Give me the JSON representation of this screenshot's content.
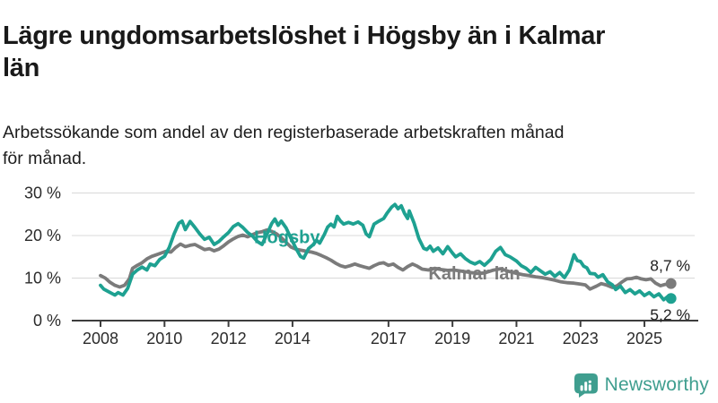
{
  "header": {
    "title_lines": [
      "Lägre ungdomsarbetslöshet i Högsby än i Kalmar",
      "län"
    ],
    "subtitle_lines": [
      "Arbetssökande som andel av den registerbaserade arbetskraften månad",
      "för månad."
    ]
  },
  "chart_data": {
    "type": "line",
    "title": "Lägre ungdomsarbetslöshet i Högsby än i Kalmar län",
    "subtitle": "Arbetssökande som andel av den registerbaserade arbetskraften månad för månad.",
    "unit": "%",
    "grid": true,
    "legend_position": "inline-labels",
    "x_axis": {
      "range": [
        2007.75,
        2026.3
      ],
      "ticks": [
        2008,
        2010,
        2012,
        2014,
        2017,
        2019,
        2021,
        2023,
        2025
      ]
    },
    "y_axis": {
      "range": [
        0,
        31
      ],
      "ticks": [
        0,
        10,
        20,
        30
      ],
      "tick_labels": [
        "0 %",
        "10 %",
        "20 %",
        "30 %"
      ]
    },
    "colors": {
      "axis": "#3d3d3d",
      "gridline": "#d8d8d8"
    },
    "series": [
      {
        "name": "Kalmar län",
        "color": "#7b7b7b",
        "final_value": 8.7,
        "final_value_label": "8,7 %",
        "final_label_side": "above",
        "label_anchor": [
          2018.25,
          9.7
        ],
        "points": [
          [
            2008.0,
            10.6
          ],
          [
            2008.15,
            10.0
          ],
          [
            2008.3,
            9.0
          ],
          [
            2008.45,
            8.3
          ],
          [
            2008.6,
            7.9
          ],
          [
            2008.75,
            8.3
          ],
          [
            2008.9,
            9.8
          ],
          [
            2009.0,
            12.3
          ],
          [
            2009.15,
            13.0
          ],
          [
            2009.3,
            13.6
          ],
          [
            2009.45,
            14.5
          ],
          [
            2009.6,
            15.1
          ],
          [
            2009.75,
            15.5
          ],
          [
            2009.9,
            15.9
          ],
          [
            2010.05,
            16.3
          ],
          [
            2010.2,
            16.1
          ],
          [
            2010.35,
            17.2
          ],
          [
            2010.5,
            18.0
          ],
          [
            2010.65,
            17.4
          ],
          [
            2010.8,
            17.7
          ],
          [
            2010.95,
            17.9
          ],
          [
            2011.1,
            17.3
          ],
          [
            2011.25,
            16.7
          ],
          [
            2011.4,
            16.9
          ],
          [
            2011.55,
            16.4
          ],
          [
            2011.7,
            16.8
          ],
          [
            2011.85,
            17.6
          ],
          [
            2012.0,
            18.5
          ],
          [
            2012.15,
            19.2
          ],
          [
            2012.3,
            19.8
          ],
          [
            2012.45,
            20.1
          ],
          [
            2012.6,
            19.7
          ],
          [
            2012.75,
            20.2
          ],
          [
            2012.9,
            20.7
          ],
          [
            2013.05,
            20.9
          ],
          [
            2013.2,
            21.3
          ],
          [
            2013.35,
            21.0
          ],
          [
            2013.5,
            20.4
          ],
          [
            2013.65,
            19.5
          ],
          [
            2013.8,
            18.4
          ],
          [
            2013.95,
            17.3
          ],
          [
            2014.1,
            16.8
          ],
          [
            2014.3,
            16.5
          ],
          [
            2014.45,
            16.3
          ],
          [
            2014.6,
            16.1
          ],
          [
            2014.75,
            15.8
          ],
          [
            2014.9,
            15.3
          ],
          [
            2015.05,
            14.8
          ],
          [
            2015.2,
            14.2
          ],
          [
            2015.35,
            13.5
          ],
          [
            2015.5,
            12.9
          ],
          [
            2015.65,
            12.6
          ],
          [
            2015.8,
            12.9
          ],
          [
            2015.95,
            13.3
          ],
          [
            2016.1,
            12.9
          ],
          [
            2016.25,
            12.6
          ],
          [
            2016.4,
            12.3
          ],
          [
            2016.55,
            12.9
          ],
          [
            2016.7,
            13.4
          ],
          [
            2016.85,
            13.6
          ],
          [
            2017.0,
            13.0
          ],
          [
            2017.15,
            13.3
          ],
          [
            2017.3,
            12.5
          ],
          [
            2017.45,
            11.9
          ],
          [
            2017.6,
            12.7
          ],
          [
            2017.75,
            13.3
          ],
          [
            2017.9,
            12.8
          ],
          [
            2018.05,
            12.1
          ],
          [
            2018.25,
            11.9
          ],
          [
            2018.45,
            12.3
          ],
          [
            2018.65,
            12.0
          ],
          [
            2018.85,
            11.8
          ],
          [
            2019.05,
            11.9
          ],
          [
            2019.3,
            11.6
          ],
          [
            2019.55,
            11.3
          ],
          [
            2019.8,
            11.1
          ],
          [
            2020.0,
            11.2
          ],
          [
            2020.25,
            11.8
          ],
          [
            2020.5,
            12.2
          ],
          [
            2020.75,
            11.6
          ],
          [
            2021.0,
            11.1
          ],
          [
            2021.2,
            10.8
          ],
          [
            2021.4,
            10.6
          ],
          [
            2021.6,
            10.3
          ],
          [
            2021.8,
            10.1
          ],
          [
            2022.0,
            9.8
          ],
          [
            2022.2,
            9.5
          ],
          [
            2022.4,
            9.1
          ],
          [
            2022.6,
            8.9
          ],
          [
            2022.8,
            8.8
          ],
          [
            2023.0,
            8.6
          ],
          [
            2023.15,
            8.4
          ],
          [
            2023.3,
            7.4
          ],
          [
            2023.5,
            8.1
          ],
          [
            2023.65,
            8.7
          ],
          [
            2023.8,
            8.4
          ],
          [
            2024.0,
            7.8
          ],
          [
            2024.15,
            8.2
          ],
          [
            2024.3,
            9.1
          ],
          [
            2024.45,
            9.8
          ],
          [
            2024.6,
            9.9
          ],
          [
            2024.75,
            10.2
          ],
          [
            2024.9,
            9.8
          ],
          [
            2025.05,
            9.6
          ],
          [
            2025.2,
            9.8
          ],
          [
            2025.35,
            8.8
          ],
          [
            2025.5,
            8.2
          ],
          [
            2025.65,
            8.5
          ],
          [
            2025.83,
            8.7
          ]
        ]
      },
      {
        "name": "Högsby",
        "color": "#1ea191",
        "final_value": 5.2,
        "final_value_label": "5,2 %",
        "final_label_side": "below",
        "label_anchor": [
          2012.8,
          18.2
        ],
        "points": [
          [
            2008.0,
            8.3
          ],
          [
            2008.1,
            7.4
          ],
          [
            2008.25,
            6.8
          ],
          [
            2008.45,
            6.0
          ],
          [
            2008.55,
            6.6
          ],
          [
            2008.7,
            6.0
          ],
          [
            2008.85,
            7.6
          ],
          [
            2009.0,
            10.9
          ],
          [
            2009.15,
            11.9
          ],
          [
            2009.3,
            12.6
          ],
          [
            2009.45,
            11.9
          ],
          [
            2009.55,
            13.3
          ],
          [
            2009.7,
            12.9
          ],
          [
            2009.85,
            14.4
          ],
          [
            2010.0,
            15.1
          ],
          [
            2010.15,
            17.2
          ],
          [
            2010.3,
            20.4
          ],
          [
            2010.45,
            22.9
          ],
          [
            2010.55,
            23.4
          ],
          [
            2010.65,
            21.4
          ],
          [
            2010.8,
            23.3
          ],
          [
            2010.95,
            21.9
          ],
          [
            2011.1,
            20.4
          ],
          [
            2011.25,
            19.1
          ],
          [
            2011.4,
            19.6
          ],
          [
            2011.55,
            17.9
          ],
          [
            2011.7,
            18.6
          ],
          [
            2011.85,
            19.7
          ],
          [
            2012.0,
            20.7
          ],
          [
            2012.15,
            22.1
          ],
          [
            2012.3,
            22.8
          ],
          [
            2012.45,
            21.9
          ],
          [
            2012.6,
            20.7
          ],
          [
            2012.75,
            19.9
          ],
          [
            2012.9,
            18.6
          ],
          [
            2013.05,
            17.9
          ],
          [
            2013.2,
            20.3
          ],
          [
            2013.35,
            22.8
          ],
          [
            2013.45,
            23.9
          ],
          [
            2013.55,
            22.4
          ],
          [
            2013.65,
            23.4
          ],
          [
            2013.8,
            21.8
          ],
          [
            2013.95,
            19.4
          ],
          [
            2014.1,
            17.1
          ],
          [
            2014.25,
            15.1
          ],
          [
            2014.35,
            14.7
          ],
          [
            2014.5,
            16.9
          ],
          [
            2014.65,
            17.9
          ],
          [
            2014.75,
            18.9
          ],
          [
            2014.85,
            18.2
          ],
          [
            2015.0,
            20.3
          ],
          [
            2015.1,
            22.0
          ],
          [
            2015.2,
            22.7
          ],
          [
            2015.3,
            22.0
          ],
          [
            2015.4,
            24.5
          ],
          [
            2015.5,
            23.4
          ],
          [
            2015.6,
            22.7
          ],
          [
            2015.75,
            23.1
          ],
          [
            2015.9,
            22.7
          ],
          [
            2016.05,
            23.2
          ],
          [
            2016.2,
            22.4
          ],
          [
            2016.3,
            20.4
          ],
          [
            2016.4,
            19.7
          ],
          [
            2016.55,
            22.7
          ],
          [
            2016.7,
            23.4
          ],
          [
            2016.85,
            24.0
          ],
          [
            2016.95,
            25.2
          ],
          [
            2017.1,
            26.7
          ],
          [
            2017.2,
            27.3
          ],
          [
            2017.3,
            26.3
          ],
          [
            2017.4,
            27.0
          ],
          [
            2017.5,
            25.2
          ],
          [
            2017.6,
            24.0
          ],
          [
            2017.65,
            25.8
          ],
          [
            2017.8,
            22.9
          ],
          [
            2017.95,
            19.3
          ],
          [
            2018.1,
            17.0
          ],
          [
            2018.2,
            16.7
          ],
          [
            2018.3,
            17.5
          ],
          [
            2018.4,
            16.3
          ],
          [
            2018.55,
            17.1
          ],
          [
            2018.7,
            15.7
          ],
          [
            2018.85,
            17.4
          ],
          [
            2019.0,
            15.9
          ],
          [
            2019.1,
            15.0
          ],
          [
            2019.25,
            15.7
          ],
          [
            2019.4,
            14.6
          ],
          [
            2019.55,
            13.8
          ],
          [
            2019.7,
            13.3
          ],
          [
            2019.85,
            13.9
          ],
          [
            2020.0,
            13.0
          ],
          [
            2020.2,
            14.4
          ],
          [
            2020.35,
            16.3
          ],
          [
            2020.5,
            17.2
          ],
          [
            2020.65,
            15.5
          ],
          [
            2020.8,
            15.0
          ],
          [
            2021.0,
            14.0
          ],
          [
            2021.15,
            12.9
          ],
          [
            2021.3,
            12.3
          ],
          [
            2021.45,
            11.3
          ],
          [
            2021.6,
            12.5
          ],
          [
            2021.75,
            11.7
          ],
          [
            2021.9,
            10.9
          ],
          [
            2022.05,
            11.5
          ],
          [
            2022.2,
            10.4
          ],
          [
            2022.35,
            11.3
          ],
          [
            2022.5,
            10.1
          ],
          [
            2022.65,
            11.9
          ],
          [
            2022.8,
            15.5
          ],
          [
            2022.9,
            14.1
          ],
          [
            2023.0,
            13.9
          ],
          [
            2023.1,
            12.8
          ],
          [
            2023.2,
            12.4
          ],
          [
            2023.3,
            11.1
          ],
          [
            2023.45,
            11.0
          ],
          [
            2023.55,
            10.2
          ],
          [
            2023.7,
            10.8
          ],
          [
            2023.85,
            9.1
          ],
          [
            2024.0,
            8.4
          ],
          [
            2024.1,
            7.3
          ],
          [
            2024.25,
            8.1
          ],
          [
            2024.4,
            6.6
          ],
          [
            2024.55,
            7.3
          ],
          [
            2024.7,
            6.3
          ],
          [
            2024.85,
            7.0
          ],
          [
            2025.0,
            5.9
          ],
          [
            2025.15,
            6.6
          ],
          [
            2025.3,
            5.6
          ],
          [
            2025.45,
            6.3
          ],
          [
            2025.6,
            4.9
          ],
          [
            2025.72,
            5.6
          ],
          [
            2025.83,
            5.2
          ]
        ]
      }
    ]
  },
  "footer": {
    "brand": "Newsworthy",
    "brand_color": "#3f9e8f"
  }
}
